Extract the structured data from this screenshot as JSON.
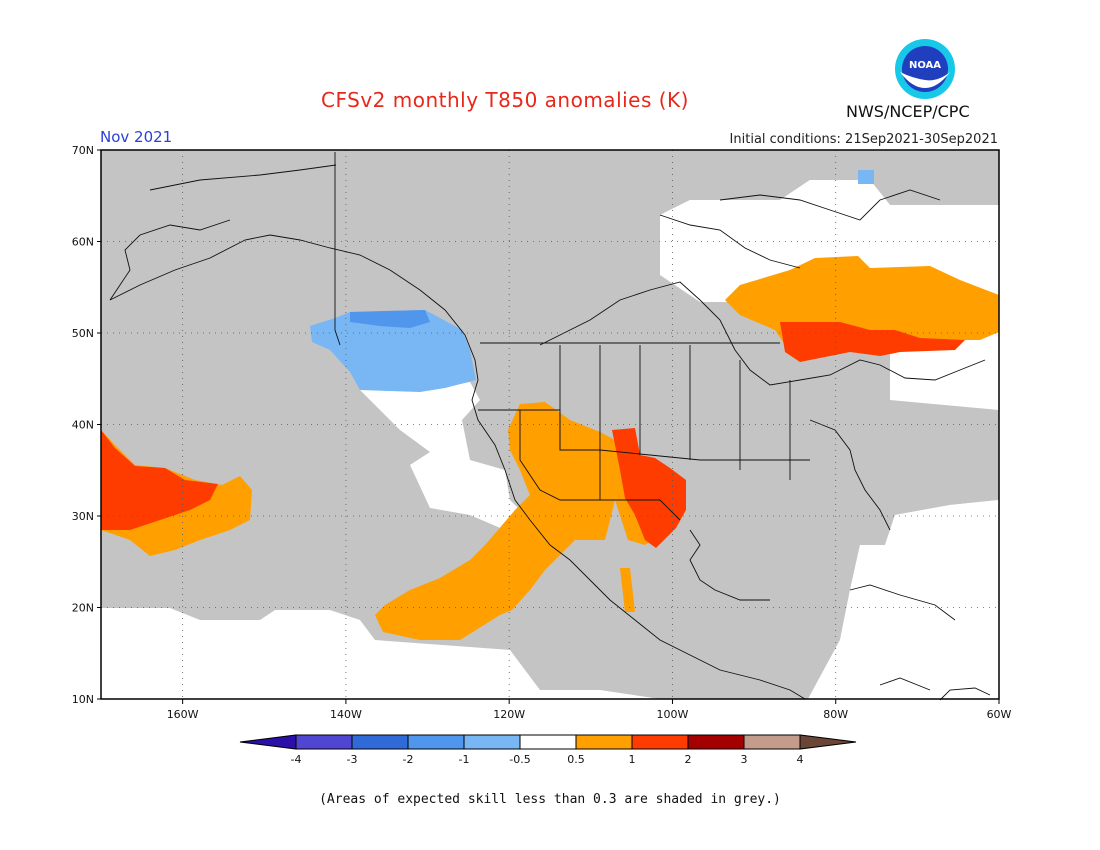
{
  "header": {
    "title": "CFSv2 monthly T850 anomalies (K)",
    "month": "Nov 2021",
    "initial_conditions": "Initial conditions: 21Sep2021-30Sep2021",
    "agency": "NWS/NCEP/CPC",
    "logo_text": "NOAA"
  },
  "map": {
    "lat_labels": [
      "70N",
      "60N",
      "50N",
      "40N",
      "30N",
      "20N",
      "10N"
    ],
    "lon_labels": [
      "160W",
      "140W",
      "120W",
      "100W",
      "80W",
      "60W"
    ],
    "grey_meaning": "Areas of expected skill less than 0.3 are shaded in grey."
  },
  "legend": {
    "tick_labels": [
      "-4",
      "-3",
      "-2",
      "-1",
      "-0.5",
      "0.5",
      "1",
      "2",
      "3",
      "4"
    ],
    "colors": [
      "#2a0fa8",
      "#5046d2",
      "#2f6ad8",
      "#4f96ec",
      "#78b6f4",
      "#ffffff",
      "#ff9f00",
      "#ff3c00",
      "#a50000",
      "#c49c8c",
      "#6b4535"
    ]
  },
  "footnote": "(Areas of expected skill less than 0.3 are shaded in grey.)"
}
